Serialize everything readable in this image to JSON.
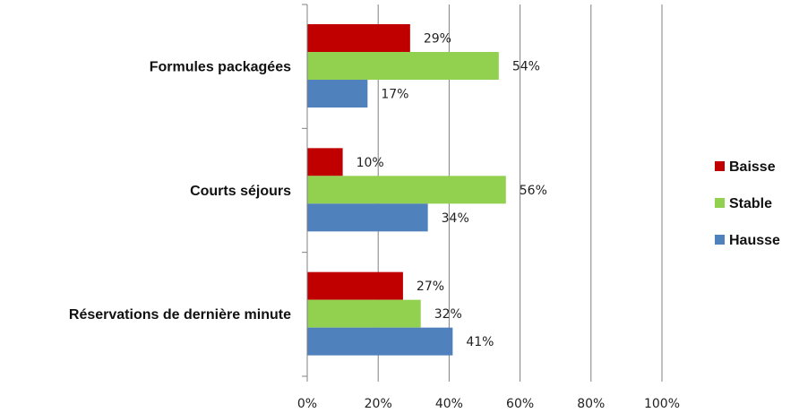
{
  "chart_data": {
    "type": "bar",
    "orientation": "horizontal",
    "categories": [
      "Formules packagées",
      "Courts séjours",
      "Réservations de dernière minute"
    ],
    "series": [
      {
        "name": "Baisse",
        "color": "#c00000",
        "values": [
          29,
          10,
          27
        ]
      },
      {
        "name": "Stable",
        "color": "#92d050",
        "values": [
          54,
          56,
          32
        ]
      },
      {
        "name": "Hausse",
        "color": "#4f81bd",
        "values": [
          17,
          34,
          41
        ]
      }
    ],
    "value_suffix": "%",
    "xlim": [
      0,
      100
    ],
    "xticks": [
      0,
      20,
      40,
      60,
      80,
      100
    ],
    "xtick_labels": [
      "0%",
      "20%",
      "40%",
      "60%",
      "80%",
      "100%"
    ],
    "grid": "vertical",
    "gridline_color": "#808080",
    "legend_position": "right"
  }
}
